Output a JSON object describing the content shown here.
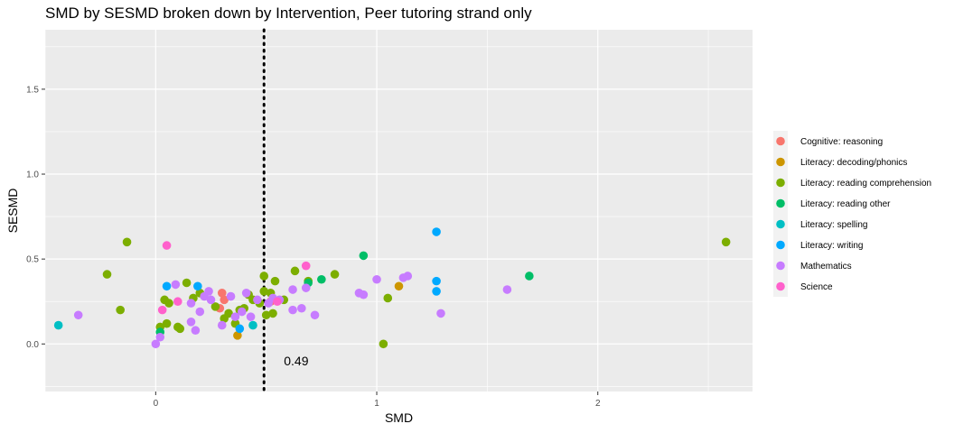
{
  "chart_data": {
    "type": "scatter",
    "title": "SMD by SESMD broken down by Intervention, Peer tutoring strand only",
    "xlabel": "SMD",
    "ylabel": "SESMD",
    "xlim": [
      -0.5,
      2.7
    ],
    "ylim": [
      -0.28,
      1.85
    ],
    "x_ticks": [
      0,
      1,
      2
    ],
    "x_tick_labels": [
      "0",
      "1",
      "2"
    ],
    "y_ticks": [
      0.0,
      0.5,
      1.0,
      1.5
    ],
    "y_tick_labels": [
      "0.0",
      "0.5",
      "1.0",
      "1.5"
    ],
    "grid": true,
    "legend_position": "right",
    "reference_line": {
      "x": 0.49,
      "style": "dotted",
      "label": "0.49"
    },
    "series": [
      {
        "name": "Cognitive: reasoning",
        "color": "#F8766D",
        "points": [
          [
            0.3,
            0.3
          ],
          [
            0.31,
            0.26
          ],
          [
            0.29,
            0.21
          ],
          [
            0.52,
            0.25
          ]
        ]
      },
      {
        "name": "Literacy: decoding/phonics",
        "color": "#CD9600",
        "points": [
          [
            0.37,
            0.05
          ],
          [
            1.1,
            0.34
          ]
        ]
      },
      {
        "name": "Literacy: reading comprehension",
        "color": "#7CAE00",
        "points": [
          [
            -0.13,
            0.6
          ],
          [
            -0.22,
            0.41
          ],
          [
            -0.16,
            0.2
          ],
          [
            0.02,
            0.1
          ],
          [
            0.04,
            0.26
          ],
          [
            0.05,
            0.12
          ],
          [
            0.1,
            0.1
          ],
          [
            0.11,
            0.09
          ],
          [
            0.14,
            0.36
          ],
          [
            0.17,
            0.27
          ],
          [
            0.2,
            0.3
          ],
          [
            0.27,
            0.22
          ],
          [
            0.31,
            0.15
          ],
          [
            0.33,
            0.18
          ],
          [
            0.36,
            0.12
          ],
          [
            0.38,
            0.2
          ],
          [
            0.4,
            0.21
          ],
          [
            0.42,
            0.29
          ],
          [
            0.44,
            0.26
          ],
          [
            0.47,
            0.24
          ],
          [
            0.49,
            0.4
          ],
          [
            0.49,
            0.31
          ],
          [
            0.5,
            0.17
          ],
          [
            0.52,
            0.3
          ],
          [
            0.53,
            0.18
          ],
          [
            0.54,
            0.37
          ],
          [
            0.58,
            0.26
          ],
          [
            0.63,
            0.43
          ],
          [
            0.69,
            0.37
          ],
          [
            0.81,
            0.41
          ],
          [
            1.03,
            0.0
          ],
          [
            1.05,
            0.27
          ],
          [
            2.58,
            0.6
          ],
          [
            0.06,
            0.24
          ]
        ]
      },
      {
        "name": "Literacy: reading other",
        "color": "#00BE67",
        "points": [
          [
            0.02,
            0.07
          ],
          [
            0.69,
            0.36
          ],
          [
            0.75,
            0.38
          ],
          [
            0.94,
            0.52
          ],
          [
            1.69,
            0.4
          ]
        ]
      },
      {
        "name": "Literacy: spelling",
        "color": "#00BFC4",
        "points": [
          [
            -0.44,
            0.11
          ],
          [
            0.44,
            0.11
          ]
        ]
      },
      {
        "name": "Literacy: writing",
        "color": "#00A9FF",
        "points": [
          [
            0.05,
            0.34
          ],
          [
            0.19,
            0.34
          ],
          [
            0.38,
            0.09
          ],
          [
            1.27,
            0.66
          ],
          [
            1.27,
            0.37
          ],
          [
            1.27,
            0.31
          ]
        ]
      },
      {
        "name": "Mathematics",
        "color": "#C77CFF",
        "points": [
          [
            -0.35,
            0.17
          ],
          [
            0.0,
            0.0
          ],
          [
            0.02,
            0.04
          ],
          [
            0.09,
            0.35
          ],
          [
            0.16,
            0.24
          ],
          [
            0.16,
            0.13
          ],
          [
            0.18,
            0.08
          ],
          [
            0.2,
            0.19
          ],
          [
            0.22,
            0.28
          ],
          [
            0.24,
            0.31
          ],
          [
            0.25,
            0.26
          ],
          [
            0.3,
            0.11
          ],
          [
            0.34,
            0.28
          ],
          [
            0.36,
            0.16
          ],
          [
            0.39,
            0.19
          ],
          [
            0.41,
            0.3
          ],
          [
            0.43,
            0.16
          ],
          [
            0.46,
            0.26
          ],
          [
            0.51,
            0.24
          ],
          [
            0.53,
            0.27
          ],
          [
            0.56,
            0.26
          ],
          [
            0.62,
            0.2
          ],
          [
            0.62,
            0.32
          ],
          [
            0.66,
            0.21
          ],
          [
            0.68,
            0.33
          ],
          [
            0.72,
            0.17
          ],
          [
            0.92,
            0.3
          ],
          [
            0.94,
            0.29
          ],
          [
            1.0,
            0.38
          ],
          [
            1.12,
            0.39
          ],
          [
            1.14,
            0.4
          ],
          [
            1.29,
            0.18
          ],
          [
            1.59,
            0.32
          ]
        ]
      },
      {
        "name": "Science",
        "color": "#FF61CC",
        "points": [
          [
            0.03,
            0.2
          ],
          [
            0.05,
            0.58
          ],
          [
            0.1,
            0.25
          ],
          [
            0.55,
            0.25
          ],
          [
            0.68,
            0.46
          ]
        ]
      }
    ]
  }
}
